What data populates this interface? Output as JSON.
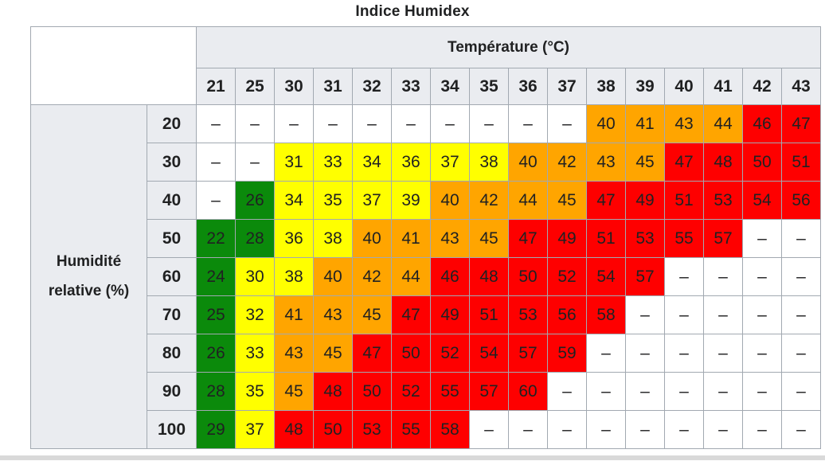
{
  "title": "Indice Humidex",
  "empty_cell_text": "–",
  "colors": {
    "green": "#0b8a0b",
    "yellow": "#ffff00",
    "orange": "#ffa500",
    "red": "#fe0000",
    "header_bg": "#eaecf0",
    "border": "#a2a9b1",
    "text": "#202122",
    "bottom_bar": "#d9d9d9"
  },
  "chart_data": {
    "type": "heatmap",
    "title": "Indice Humidex",
    "col_axis_label": "Température (°C)",
    "row_axis_label": "Humidité relative (%)",
    "row_axis_label_lines": [
      "Humidité",
      "relative (%)"
    ],
    "columns": [
      21,
      25,
      30,
      31,
      32,
      33,
      34,
      35,
      36,
      37,
      38,
      39,
      40,
      41,
      42,
      43
    ],
    "rows": [
      20,
      30,
      40,
      50,
      60,
      70,
      80,
      90,
      100
    ],
    "values": [
      [
        null,
        null,
        null,
        null,
        null,
        null,
        null,
        null,
        null,
        null,
        40,
        41,
        43,
        44,
        46,
        47
      ],
      [
        null,
        null,
        31,
        33,
        34,
        36,
        37,
        38,
        40,
        42,
        43,
        45,
        47,
        48,
        50,
        51
      ],
      [
        null,
        26,
        34,
        35,
        37,
        39,
        40,
        42,
        44,
        45,
        47,
        49,
        51,
        53,
        54,
        56
      ],
      [
        22,
        28,
        36,
        38,
        40,
        41,
        43,
        45,
        47,
        49,
        51,
        53,
        55,
        57,
        null,
        null
      ],
      [
        24,
        30,
        38,
        40,
        42,
        44,
        46,
        48,
        50,
        52,
        54,
        57,
        null,
        null,
        null,
        null
      ],
      [
        25,
        32,
        41,
        43,
        45,
        47,
        49,
        51,
        53,
        56,
        58,
        null,
        null,
        null,
        null,
        null
      ],
      [
        26,
        33,
        43,
        45,
        47,
        50,
        52,
        54,
        57,
        59,
        null,
        null,
        null,
        null,
        null,
        null
      ],
      [
        28,
        35,
        45,
        48,
        50,
        52,
        55,
        57,
        60,
        null,
        null,
        null,
        null,
        null,
        null,
        null
      ],
      [
        29,
        37,
        48,
        50,
        53,
        55,
        58,
        null,
        null,
        null,
        null,
        null,
        null,
        null,
        null,
        null
      ]
    ],
    "color_scale": [
      {
        "label": "green",
        "max": 29
      },
      {
        "label": "yellow",
        "max": 39
      },
      {
        "label": "orange",
        "max": 45
      },
      {
        "label": "red",
        "max": 999
      }
    ]
  }
}
